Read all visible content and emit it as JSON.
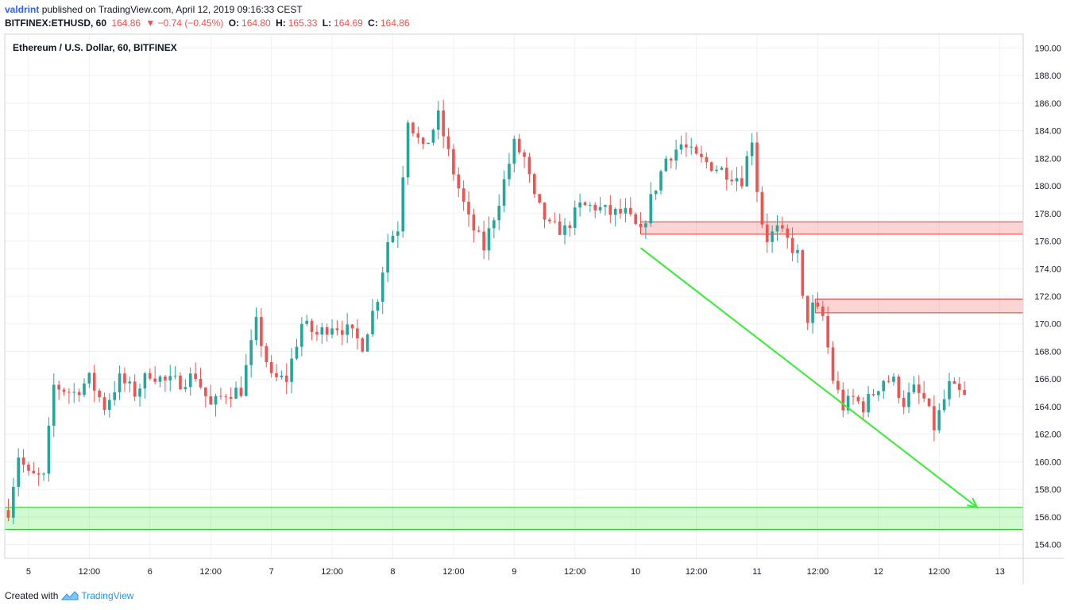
{
  "header": {
    "author": "valdrint",
    "published_text": "published on TradingView.com, April 12, 2019 09:16:33 CEST",
    "symbol": "BITFINEX:ETHUSD, 60",
    "last": "164.86",
    "change": "▼ −0.74 (−0.45%)",
    "open_label": "O:",
    "open": "164.80",
    "high_label": "H:",
    "high": "165.33",
    "low_label": "L:",
    "low": "164.69",
    "close_label": "C:",
    "close": "164.86"
  },
  "footer": {
    "created_with": "Created with",
    "brand": "TradingView"
  },
  "colors": {
    "up": "#26a69a",
    "down": "#ef5350",
    "support": "#00e600",
    "resistance": "#e53935",
    "arrow": "#33ee33",
    "grid": "#eef1f5"
  },
  "chart_data": {
    "type": "candlestick",
    "title": "Ethereum / U.S. Dollar, 60, BITFINEX",
    "ylim": [
      153,
      191
    ],
    "y_ticks": [
      "154.00",
      "156.00",
      "158.00",
      "160.00",
      "162.00",
      "164.00",
      "166.00",
      "168.00",
      "170.00",
      "172.00",
      "174.00",
      "176.00",
      "178.00",
      "180.00",
      "182.00",
      "184.00",
      "186.00",
      "188.00",
      "190.00"
    ],
    "x_ticks": [
      "5",
      "12:00",
      "6",
      "12:00",
      "7",
      "12:00",
      "8",
      "12:00",
      "9",
      "12:00",
      "10",
      "12:00",
      "11",
      "12:00",
      "12",
      "12:00",
      "13"
    ],
    "x_tick_hours": [
      0,
      12,
      24,
      36,
      48,
      60,
      72,
      84,
      96,
      108,
      120,
      132,
      144,
      156,
      168,
      180,
      192
    ],
    "hour_range": [
      -4.7,
      196.6
    ],
    "candle_anchors": [
      [
        -4,
        156.5
      ],
      [
        -2,
        160.5
      ],
      [
        0,
        159
      ],
      [
        3,
        158.8
      ],
      [
        5,
        165.5
      ],
      [
        9,
        165
      ],
      [
        12,
        166
      ],
      [
        15,
        164
      ],
      [
        18,
        166
      ],
      [
        21,
        165
      ],
      [
        24,
        166.5
      ],
      [
        27,
        165.8
      ],
      [
        30,
        165.8
      ],
      [
        33,
        166.3
      ],
      [
        36,
        164
      ],
      [
        39,
        165
      ],
      [
        42,
        165.2
      ],
      [
        45,
        170
      ],
      [
        48,
        166
      ],
      [
        51,
        166
      ],
      [
        54,
        170
      ],
      [
        57,
        169.2
      ],
      [
        60,
        170
      ],
      [
        63,
        169.5
      ],
      [
        66,
        168.5
      ],
      [
        69,
        172
      ],
      [
        71,
        176
      ],
      [
        73,
        177
      ],
      [
        75,
        185
      ],
      [
        78,
        182.5
      ],
      [
        81,
        185
      ],
      [
        84,
        181
      ],
      [
        87,
        177.5
      ],
      [
        90,
        175.5
      ],
      [
        93,
        179
      ],
      [
        96,
        183
      ],
      [
        98,
        182
      ],
      [
        100,
        179
      ],
      [
        103,
        177
      ],
      [
        106,
        176.8
      ],
      [
        109,
        178.5
      ],
      [
        112,
        178.5
      ],
      [
        115,
        178
      ],
      [
        118,
        178
      ],
      [
        121,
        176.5
      ],
      [
        123,
        179
      ],
      [
        126,
        182
      ],
      [
        129,
        183
      ],
      [
        132,
        182
      ],
      [
        135,
        181.5
      ],
      [
        138,
        181
      ],
      [
        141,
        180.5
      ],
      [
        143,
        183.5
      ],
      [
        144.5,
        178
      ],
      [
        146,
        176.2
      ],
      [
        148,
        176.8
      ],
      [
        150,
        176
      ],
      [
        152,
        175
      ],
      [
        153.5,
        170
      ],
      [
        155,
        171.2
      ],
      [
        157,
        170.5
      ],
      [
        159,
        166
      ],
      [
        161,
        164
      ],
      [
        163,
        164.6
      ],
      [
        165,
        164
      ],
      [
        167,
        165
      ],
      [
        169,
        166
      ],
      [
        171,
        165.8
      ],
      [
        173,
        164.3
      ],
      [
        175,
        165.2
      ],
      [
        177,
        164.5
      ],
      [
        179,
        162.5
      ],
      [
        180.5,
        164
      ],
      [
        182,
        165.5
      ],
      [
        183.5,
        165
      ],
      [
        185,
        164.86
      ]
    ],
    "zones": [
      {
        "name": "support",
        "y_low": 155.1,
        "y_high": 156.7,
        "x_from_hour": -4.7
      },
      {
        "name": "resistance-1",
        "y_low": 176.5,
        "y_high": 177.4,
        "x_from_hour": 121
      },
      {
        "name": "resistance-2",
        "y_low": 170.8,
        "y_high": 171.8,
        "x_from_hour": 155.5
      }
    ],
    "trend_arrow": {
      "from": [
        121,
        175.5
      ],
      "to": [
        187.5,
        156.7
      ]
    },
    "last_price": 164.86
  }
}
